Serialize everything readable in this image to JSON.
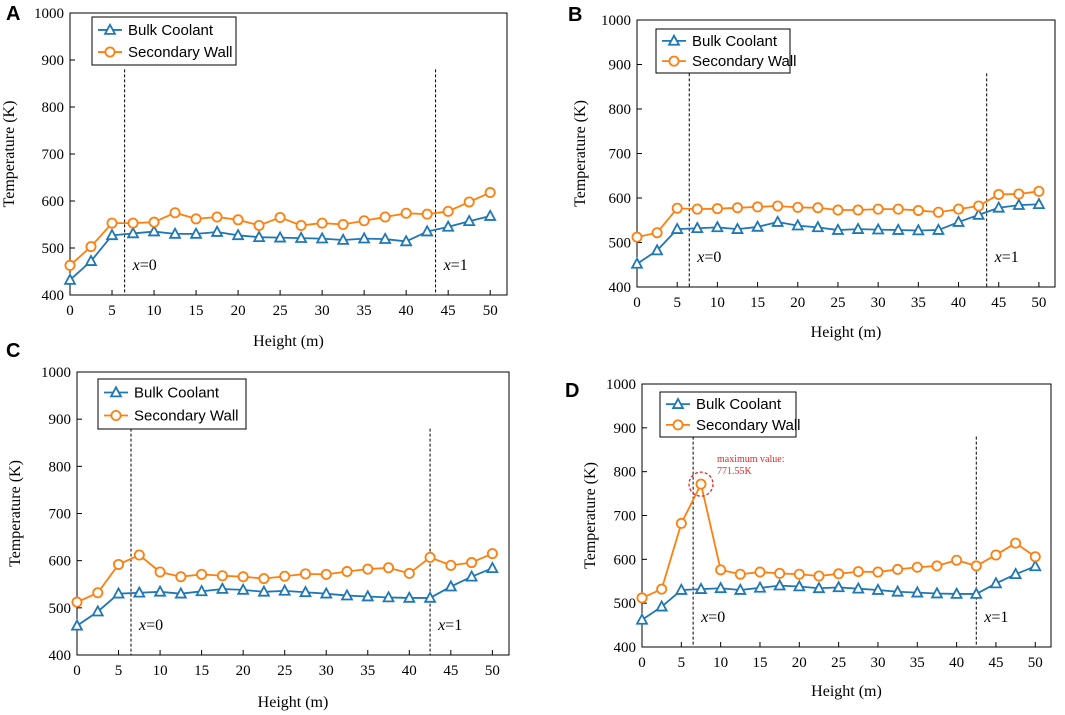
{
  "colors": {
    "bulk": "#1f77b4",
    "wall": "#ff7f0e",
    "annotation": "#e8262b"
  },
  "chart_data": [
    {
      "panel_label": "A",
      "type": "line",
      "xlabel": "Height (m)",
      "ylabel": "Temperature (K)",
      "xlim": [
        0,
        52
      ],
      "ylim": [
        400,
        1000
      ],
      "xticks": [
        "0",
        "5",
        "10",
        "15",
        "20",
        "25",
        "30",
        "35",
        "40",
        "45",
        "50"
      ],
      "yticks": [
        "400",
        "500",
        "600",
        "700",
        "800",
        "900",
        "1000"
      ],
      "x": [
        0,
        2.5,
        5,
        7.5,
        10,
        12.5,
        15,
        17.5,
        20,
        22.5,
        25,
        27.5,
        30,
        32.5,
        35,
        37.5,
        40,
        42.5,
        45,
        47.5,
        50
      ],
      "series": [
        {
          "name": "Bulk Coolant",
          "marker": "triangle",
          "values": [
            432,
            472,
            527,
            531,
            535,
            530,
            530,
            534,
            527,
            523,
            522,
            521,
            520,
            517,
            520,
            519,
            514,
            535,
            545,
            557,
            568
          ]
        },
        {
          "name": "Secondary Wall",
          "marker": "circle",
          "values": [
            463,
            503,
            553,
            553,
            555,
            575,
            562,
            566,
            560,
            548,
            565,
            548,
            553,
            550,
            558,
            566,
            574,
            572,
            578,
            598,
            618
          ]
        }
      ],
      "vlines": [
        {
          "x": 6.5,
          "text_italic": "x",
          "text_rest": "=0"
        },
        {
          "x": 43.5,
          "text_italic": "x",
          "text_rest": "=1"
        }
      ]
    },
    {
      "panel_label": "B",
      "type": "line",
      "xlabel": "Height (m)",
      "ylabel": "Temperature (K)",
      "xlim": [
        0,
        52
      ],
      "ylim": [
        400,
        1000
      ],
      "xticks": [
        "0",
        "5",
        "10",
        "15",
        "20",
        "25",
        "30",
        "35",
        "40",
        "45",
        "50"
      ],
      "yticks": [
        "400",
        "500",
        "600",
        "700",
        "800",
        "900",
        "1000"
      ],
      "x": [
        0,
        2.5,
        5,
        7.5,
        10,
        12.5,
        15,
        17.5,
        20,
        22.5,
        25,
        27.5,
        30,
        32.5,
        35,
        37.5,
        40,
        42.5,
        45,
        47.5,
        50
      ],
      "series": [
        {
          "name": "Bulk Coolant",
          "marker": "triangle",
          "values": [
            452,
            482,
            530,
            532,
            534,
            530,
            535,
            546,
            538,
            534,
            528,
            530,
            529,
            528,
            527,
            528,
            546,
            562,
            578,
            584,
            586
          ]
        },
        {
          "name": "Secondary Wall",
          "marker": "circle",
          "values": [
            512,
            522,
            577,
            575,
            576,
            578,
            580,
            582,
            579,
            578,
            573,
            573,
            575,
            575,
            572,
            568,
            575,
            582,
            608,
            609,
            615
          ]
        }
      ],
      "vlines": [
        {
          "x": 6.5,
          "text_italic": "x",
          "text_rest": "=0"
        },
        {
          "x": 43.5,
          "text_italic": "x",
          "text_rest": "=1"
        }
      ]
    },
    {
      "panel_label": "C",
      "type": "line",
      "xlabel": "Height (m)",
      "ylabel": "Temperature (K)",
      "xlim": [
        0,
        52
      ],
      "ylim": [
        400,
        1000
      ],
      "xticks": [
        "0",
        "5",
        "10",
        "15",
        "20",
        "25",
        "30",
        "35",
        "40",
        "45",
        "50"
      ],
      "yticks": [
        "400",
        "500",
        "600",
        "700",
        "800",
        "900",
        "1000"
      ],
      "x": [
        0,
        2.5,
        5,
        7.5,
        10,
        12.5,
        15,
        17.5,
        20,
        22.5,
        25,
        27.5,
        30,
        32.5,
        35,
        37.5,
        40,
        42.5,
        45,
        47.5,
        50
      ],
      "series": [
        {
          "name": "Bulk Coolant",
          "marker": "triangle",
          "values": [
            462,
            492,
            530,
            532,
            534,
            530,
            535,
            540,
            538,
            534,
            536,
            533,
            530,
            526,
            524,
            522,
            521,
            521,
            545,
            566,
            584
          ]
        },
        {
          "name": "Secondary Wall",
          "marker": "circle",
          "values": [
            512,
            532,
            592,
            612,
            576,
            566,
            571,
            568,
            566,
            562,
            567,
            572,
            571,
            577,
            582,
            585,
            573,
            607,
            590,
            596,
            615
          ]
        }
      ],
      "vlines": [
        {
          "x": 6.5,
          "text_italic": "x",
          "text_rest": "=0"
        },
        {
          "x": 42.5,
          "text_italic": "x",
          "text_rest": "=1"
        }
      ]
    },
    {
      "panel_label": "D",
      "type": "line",
      "xlabel": "Height (m)",
      "ylabel": "Temperature (K)",
      "xlim": [
        0,
        52
      ],
      "ylim": [
        400,
        1000
      ],
      "xticks": [
        "0",
        "5",
        "10",
        "15",
        "20",
        "25",
        "30",
        "35",
        "40",
        "45",
        "50"
      ],
      "yticks": [
        "400",
        "500",
        "600",
        "700",
        "800",
        "900",
        "1000"
      ],
      "x": [
        0,
        2.5,
        5,
        7.5,
        10,
        12.5,
        15,
        17.5,
        20,
        22.5,
        25,
        27.5,
        30,
        32.5,
        35,
        37.5,
        40,
        42.5,
        45,
        47.5,
        50
      ],
      "series": [
        {
          "name": "Bulk Coolant",
          "marker": "triangle",
          "values": [
            462,
            492,
            530,
            532,
            534,
            530,
            535,
            540,
            538,
            534,
            536,
            533,
            530,
            526,
            524,
            522,
            521,
            521,
            545,
            566,
            584
          ]
        },
        {
          "name": "Secondary Wall",
          "marker": "circle",
          "values": [
            512,
            532,
            682,
            771.55,
            576,
            566,
            571,
            568,
            566,
            562,
            567,
            572,
            571,
            577,
            582,
            585,
            598,
            585,
            610,
            637,
            606
          ]
        }
      ],
      "vlines": [
        {
          "x": 6.5,
          "text_italic": "x",
          "text_rest": "=0"
        },
        {
          "x": 42.5,
          "text_italic": "x",
          "text_rest": "=1"
        }
      ],
      "annotation": {
        "line1": "maximum value:",
        "line2": "771.55K",
        "x": 7.5,
        "y": 771.55
      }
    }
  ]
}
